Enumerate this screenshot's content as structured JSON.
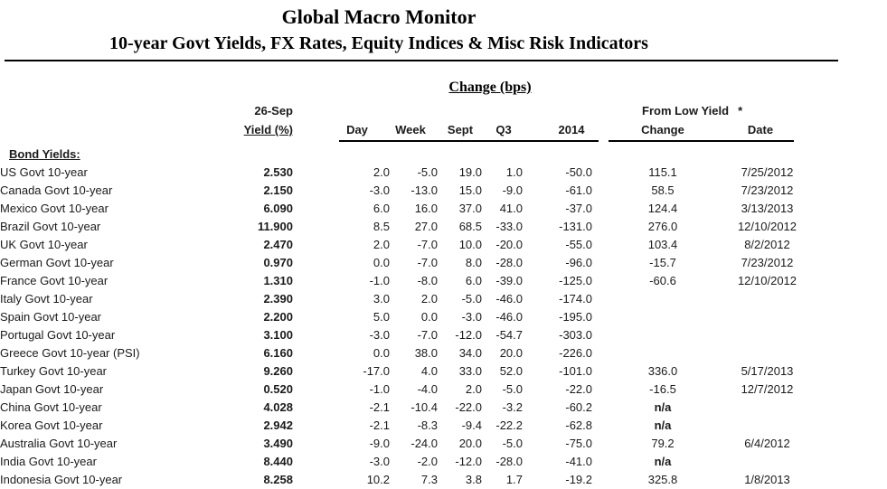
{
  "header": {
    "title": "Global Macro Monitor",
    "subtitle": "10-year Govt Yields, FX Rates, Equity Indices & Misc Risk Indicators"
  },
  "table": {
    "change_bps_header": "Change (bps)",
    "asof_date_header": "26-Sep",
    "yield_header": "Yield (%)",
    "col_headers": {
      "day": "Day",
      "week": "Week",
      "sept": "Sept",
      "q3": "Q3",
      "y2014": "2014"
    },
    "from_low_yield_header": "From Low Yield",
    "footnote_marker": "*",
    "change_header": "Change",
    "date_header": "Date",
    "section_label": "Bond Yields:",
    "rows": [
      {
        "label": "US Govt 10-year",
        "yield": "2.530",
        "day": "2.0",
        "week": "-5.0",
        "sept": "19.0",
        "q3": "1.0",
        "y2014": "-50.0",
        "change": "115.1",
        "date": "7/25/2012"
      },
      {
        "label": "Canada Govt 10-year",
        "yield": "2.150",
        "day": "-3.0",
        "week": "-13.0",
        "sept": "15.0",
        "q3": "-9.0",
        "y2014": "-61.0",
        "change": "58.5",
        "date": "7/23/2012"
      },
      {
        "label": "Mexico Govt 10-year",
        "yield": "6.090",
        "day": "6.0",
        "week": "16.0",
        "sept": "37.0",
        "q3": "41.0",
        "y2014": "-37.0",
        "change": "124.4",
        "date": "3/13/2013"
      },
      {
        "label": "Brazil Govt 10-year",
        "yield": "11.900",
        "day": "8.5",
        "week": "27.0",
        "sept": "68.5",
        "q3": "-33.0",
        "y2014": "-131.0",
        "change": "276.0",
        "date": "12/10/2012"
      },
      {
        "label": "UK Govt 10-year",
        "yield": "2.470",
        "day": "2.0",
        "week": "-7.0",
        "sept": "10.0",
        "q3": "-20.0",
        "y2014": "-55.0",
        "change": "103.4",
        "date": "8/2/2012"
      },
      {
        "label": "German Govt 10-year",
        "yield": "0.970",
        "day": "0.0",
        "week": "-7.0",
        "sept": "8.0",
        "q3": "-28.0",
        "y2014": "-96.0",
        "change": "-15.7",
        "date": "7/23/2012"
      },
      {
        "label": "France Govt 10-year",
        "yield": "1.310",
        "day": "-1.0",
        "week": "-8.0",
        "sept": "6.0",
        "q3": "-39.0",
        "y2014": "-125.0",
        "change": "-60.6",
        "date": "12/10/2012"
      },
      {
        "label": "Italy Govt 10-year",
        "yield": "2.390",
        "day": "3.0",
        "week": "2.0",
        "sept": "-5.0",
        "q3": "-46.0",
        "y2014": "-174.0",
        "change": "",
        "date": ""
      },
      {
        "label": "Spain Govt 10-year",
        "yield": "2.200",
        "day": "5.0",
        "week": "0.0",
        "sept": "-3.0",
        "q3": "-46.0",
        "y2014": "-195.0",
        "change": "",
        "date": ""
      },
      {
        "label": "Portugal Govt 10-year",
        "yield": "3.100",
        "day": "-3.0",
        "week": "-7.0",
        "sept": "-12.0",
        "q3": "-54.7",
        "y2014": "-303.0",
        "change": "",
        "date": ""
      },
      {
        "label": "Greece Govt 10-year (PSI)",
        "yield": "6.160",
        "day": "0.0",
        "week": "38.0",
        "sept": "34.0",
        "q3": "20.0",
        "y2014": "-226.0",
        "change": "",
        "date": ""
      },
      {
        "label": "Turkey Govt 10-year",
        "yield": "9.260",
        "day": "-17.0",
        "week": "4.0",
        "sept": "33.0",
        "q3": "52.0",
        "y2014": "-101.0",
        "change": "336.0",
        "date": "5/17/2013"
      },
      {
        "label": "Japan Govt 10-year",
        "yield": "0.520",
        "day": "-1.0",
        "week": "-4.0",
        "sept": "2.0",
        "q3": "-5.0",
        "y2014": "-22.0",
        "change": "-16.5",
        "date": "12/7/2012"
      },
      {
        "label": "China Govt 10-year",
        "yield": "4.028",
        "day": "-2.1",
        "week": "-10.4",
        "sept": "-22.0",
        "q3": "-3.2",
        "y2014": "-60.2",
        "change": "n/a",
        "date": ""
      },
      {
        "label": "Korea Govt 10-year",
        "yield": "2.942",
        "day": "-2.1",
        "week": "-8.3",
        "sept": "-9.4",
        "q3": "-22.2",
        "y2014": "-62.8",
        "change": "n/a",
        "date": ""
      },
      {
        "label": "Australia Govt 10-year",
        "yield": "3.490",
        "day": "-9.0",
        "week": "-24.0",
        "sept": "20.0",
        "q3": "-5.0",
        "y2014": "-75.0",
        "change": "79.2",
        "date": "6/4/2012"
      },
      {
        "label": "India Govt 10-year",
        "yield": "8.440",
        "day": "-3.0",
        "week": "-2.0",
        "sept": "-12.0",
        "q3": "-28.0",
        "y2014": "-41.0",
        "change": "n/a",
        "date": ""
      },
      {
        "label": "Indonesia Govt 10-year",
        "yield": "8.258",
        "day": "10.2",
        "week": "7.3",
        "sept": "3.8",
        "q3": "1.7",
        "y2014": "-19.2",
        "change": "325.8",
        "date": "1/8/2013"
      }
    ]
  },
  "colors": {
    "text": "#1a1a1a",
    "rule": "#000000",
    "background": "#ffffff"
  }
}
